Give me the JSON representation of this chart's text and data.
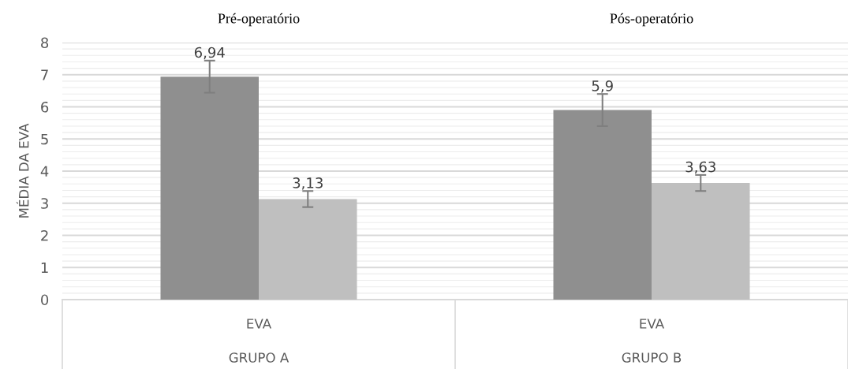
{
  "chart_data": {
    "type": "bar",
    "ylabel": "MÉDIA DA EVA",
    "categories": [
      "EVA",
      "EVA"
    ],
    "series": [
      {
        "color": "#8f8f8f",
        "values": [
          6.94,
          5.9
        ],
        "errors": [
          0.5,
          0.5
        ],
        "value_labels": [
          "6,94",
          "5,9"
        ]
      },
      {
        "color": "#bfbfbf",
        "values": [
          3.13,
          3.63
        ],
        "errors": [
          0.25,
          0.25
        ],
        "value_labels": [
          "3,13",
          "3,63"
        ]
      }
    ],
    "annotations": [
      "Pré-operatório",
      "Pós-operatório",
      "GRUPO A",
      "GRUPO B"
    ],
    "ylim": [
      0,
      8
    ],
    "yticks": [
      0,
      1,
      2,
      3,
      4,
      5,
      6,
      7,
      8
    ],
    "grid": "y"
  }
}
